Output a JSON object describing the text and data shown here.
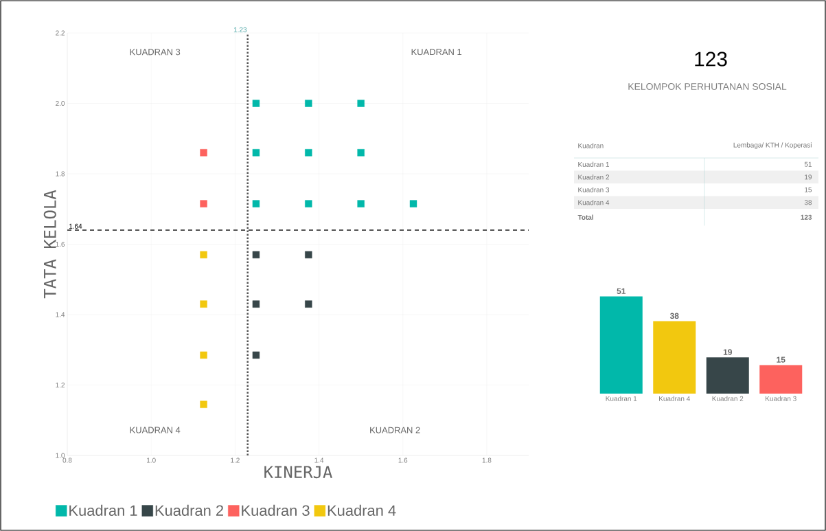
{
  "chart_data": [
    {
      "type": "scatter",
      "xlabel": "KINERJA",
      "ylabel": "TATA KELOLA",
      "marker": "square",
      "grid": true,
      "legend": "bottom",
      "xlim": [
        0.8,
        1.9
      ],
      "ylim": [
        1.0,
        2.2
      ],
      "xticks": [
        0.8,
        {
          "value": 1.0,
          "label": "1.0"
        },
        1.2,
        1.4,
        1.6,
        1.8
      ],
      "yticks": [
        {
          "value": 1.0,
          "label": "1.0"
        },
        1.2,
        1.4,
        1.6,
        1.8,
        {
          "value": 2.0,
          "label": "2.0"
        },
        2.2
      ],
      "series": [
        {
          "name": "Kuadran 1",
          "color": "#01b8aa",
          "x": [
            1.25,
            1.375,
            1.5,
            1.25,
            1.375,
            1.5,
            1.25,
            1.375,
            1.5,
            1.625
          ],
          "values": [
            2.0,
            2.0,
            2.0,
            1.86,
            1.86,
            1.86,
            1.715,
            1.715,
            1.715,
            1.715
          ]
        },
        {
          "name": "Kuadran 2",
          "color": "#374649",
          "x": [
            1.25,
            1.375,
            1.25,
            1.375,
            1.25
          ],
          "values": [
            1.57,
            1.57,
            1.43,
            1.43,
            1.285
          ]
        },
        {
          "name": "Kuadran 3",
          "color": "#fd625e",
          "x": [
            1.125,
            1.125
          ],
          "values": [
            1.86,
            1.715
          ]
        },
        {
          "name": "Kuadran 4",
          "color": "#f2c80f",
          "x": [
            1.125,
            1.125,
            1.125,
            1.125
          ],
          "values": [
            1.57,
            1.43,
            1.285,
            1.145
          ]
        }
      ],
      "ref_lines": [
        {
          "axis": "x",
          "value": 1.23,
          "label": "1.23",
          "color": "#555555",
          "line_style": "dotted"
        },
        {
          "axis": "y",
          "value": 1.64,
          "label": "1.64",
          "color": "#555555",
          "line_style": "dashed"
        }
      ],
      "annotations": [
        "KUADRAN 3",
        "KUADRAN 1",
        "KUADRAN 4",
        "KUADRAN 2"
      ]
    },
    {
      "type": "other",
      "title": "123",
      "subtitle": "KELOMPOK PERHUTANAN SOSIAL"
    },
    {
      "type": "other",
      "xlabel": "Kuadran",
      "ylabel": "Lembaga/ KTH / Koperasi",
      "categories": [
        "Kuadran 1",
        "Kuadran 2",
        "Kuadran 3",
        "Kuadran 4",
        "Total"
      ],
      "values": [
        51,
        19,
        15,
        38,
        123
      ],
      "data_labels": true
    },
    {
      "type": "bar",
      "categories": [
        "Kuadran 1",
        "Kuadran 4",
        "Kuadran 2",
        "Kuadran 3"
      ],
      "values": [
        51,
        38,
        19,
        15
      ],
      "colors": [
        "#01b8aa",
        "#f2c80f",
        "#374649",
        "#fd625e"
      ],
      "data_labels": true
    }
  ]
}
